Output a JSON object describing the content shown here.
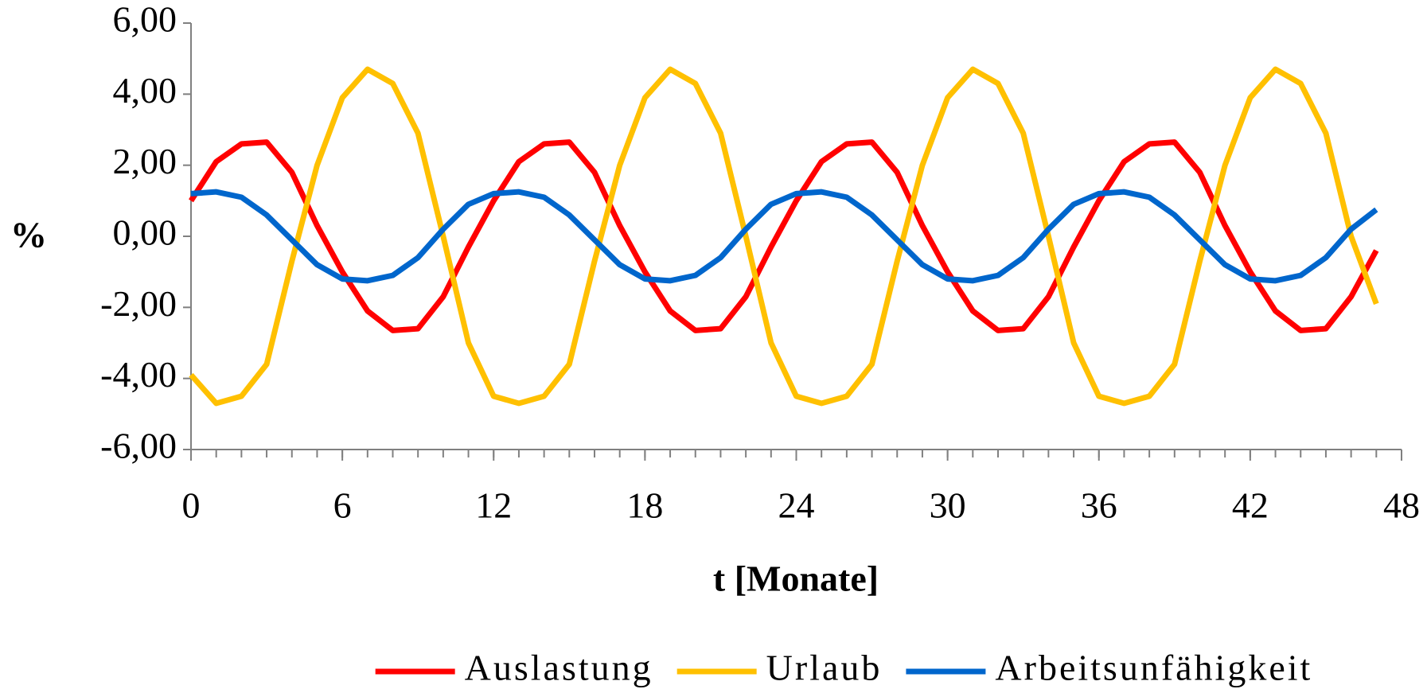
{
  "chart_data": {
    "type": "line",
    "ylabel": "%",
    "xlabel": "t [Monate]",
    "x": [
      0,
      1,
      2,
      3,
      4,
      5,
      6,
      7,
      8,
      9,
      10,
      11,
      12,
      13,
      14,
      15,
      16,
      17,
      18,
      19,
      20,
      21,
      22,
      23,
      24,
      25,
      26,
      27,
      28,
      29,
      30,
      31,
      32,
      33,
      34,
      35,
      36,
      37,
      38,
      39,
      40,
      41,
      42,
      43,
      44,
      45,
      46,
      47
    ],
    "series": [
      {
        "name": "Auslastung",
        "color": "#ff0000",
        "values": [
          1.0,
          2.1,
          2.6,
          2.65,
          1.8,
          0.3,
          -1.0,
          -2.1,
          -2.65,
          -2.6,
          -1.7,
          -0.3,
          1.0,
          2.1,
          2.6,
          2.65,
          1.8,
          0.3,
          -1.0,
          -2.1,
          -2.65,
          -2.6,
          -1.7,
          -0.3,
          1.0,
          2.1,
          2.6,
          2.65,
          1.8,
          0.3,
          -1.0,
          -2.1,
          -2.65,
          -2.6,
          -1.7,
          -0.3,
          1.0,
          2.1,
          2.6,
          2.65,
          1.8,
          0.3,
          -1.0,
          -2.1,
          -2.65,
          -2.6,
          -1.7,
          -0.4
        ]
      },
      {
        "name": "Urlaub",
        "color": "#ffc000",
        "values": [
          -3.9,
          -4.7,
          -4.5,
          -3.6,
          -0.7,
          2.0,
          3.9,
          4.7,
          4.3,
          2.9,
          0.0,
          -3.0,
          -4.5,
          -4.7,
          -4.5,
          -3.6,
          -0.7,
          2.0,
          3.9,
          4.7,
          4.3,
          2.9,
          0.0,
          -3.0,
          -4.5,
          -4.7,
          -4.5,
          -3.6,
          -0.7,
          2.0,
          3.9,
          4.7,
          4.3,
          2.9,
          0.0,
          -3.0,
          -4.5,
          -4.7,
          -4.5,
          -3.6,
          -0.7,
          2.0,
          3.9,
          4.7,
          4.3,
          2.9,
          0.0,
          -1.9
        ]
      },
      {
        "name": "Arbeitsunfähigkeit",
        "color": "#0066cc",
        "values": [
          1.2,
          1.25,
          1.1,
          0.6,
          -0.1,
          -0.8,
          -1.2,
          -1.25,
          -1.1,
          -0.6,
          0.2,
          0.9,
          1.2,
          1.25,
          1.1,
          0.6,
          -0.1,
          -0.8,
          -1.2,
          -1.25,
          -1.1,
          -0.6,
          0.2,
          0.9,
          1.2,
          1.25,
          1.1,
          0.6,
          -0.1,
          -0.8,
          -1.2,
          -1.25,
          -1.1,
          -0.6,
          0.2,
          0.9,
          1.2,
          1.25,
          1.1,
          0.6,
          -0.1,
          -0.8,
          -1.2,
          -1.25,
          -1.1,
          -0.6,
          0.2,
          0.75
        ]
      }
    ],
    "xlim": [
      0,
      48
    ],
    "xticks": [
      0,
      6,
      12,
      18,
      24,
      30,
      36,
      42,
      48
    ],
    "ylim": [
      -6,
      6
    ],
    "yticks": [
      {
        "value": -6,
        "label": "-6,00"
      },
      {
        "value": -4,
        "label": "-4,00"
      },
      {
        "value": -2,
        "label": "-2,00"
      },
      {
        "value": 0,
        "label": "0,00"
      },
      {
        "value": 2,
        "label": "2,00"
      },
      {
        "value": 4,
        "label": "4,00"
      },
      {
        "value": 6,
        "label": "6,00"
      }
    ],
    "legend": "bottom",
    "grid": false
  }
}
